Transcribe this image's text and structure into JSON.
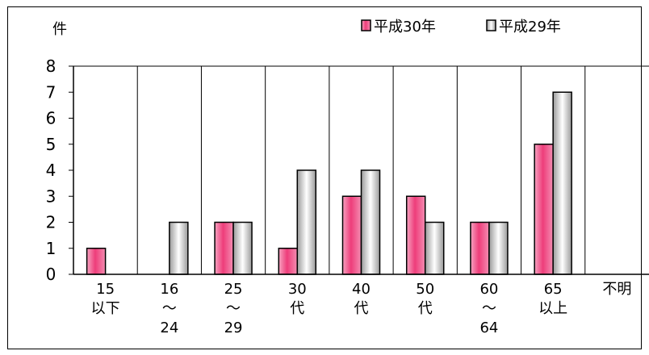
{
  "chart_data": {
    "type": "bar",
    "unit_label": "件",
    "categories": [
      [
        "15",
        "以下"
      ],
      [
        "16",
        "～",
        "24"
      ],
      [
        "25",
        "～",
        "29"
      ],
      [
        "30",
        "代"
      ],
      [
        "40",
        "代"
      ],
      [
        "50",
        "代"
      ],
      [
        "60",
        "～",
        "64"
      ],
      [
        "65",
        "以上"
      ],
      [
        "不明"
      ]
    ],
    "series": [
      {
        "name": "平成30年",
        "values": [
          1,
          0,
          2,
          1,
          3,
          3,
          2,
          5,
          0
        ],
        "color": "#ee3d7a"
      },
      {
        "name": "平成29年",
        "values": [
          0,
          2,
          2,
          4,
          4,
          2,
          2,
          7,
          0
        ],
        "color": "#c8c8c8"
      }
    ],
    "ylim": [
      0,
      8
    ],
    "yticks": [
      0,
      1,
      2,
      3,
      4,
      5,
      6,
      7,
      8
    ],
    "grid": "vertical-category-separators",
    "legend_position": "top-right"
  }
}
